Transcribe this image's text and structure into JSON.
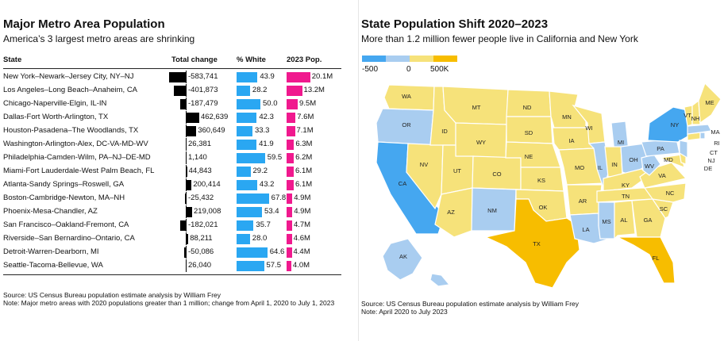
{
  "left_panel": {
    "title": "Major Metro Area Population",
    "subtitle": "America’s 3 largest metro areas are shrinking",
    "headers": {
      "state": "State",
      "change": "Total change",
      "white": "% White",
      "pop": "2023 Pop."
    },
    "source": "Source: US Census Bureau population estimate analysis by William Frey",
    "note": "Note: Major metro areas with 2020 populations greater than 1 million; change from April 1, 2020 to July 1, 2023"
  },
  "right_panel": {
    "title": "State Population Shift 2020–2023",
    "subtitle": "More than 1.2 million fewer people live in California and New York",
    "legend": {
      "labels": [
        "-500",
        "0",
        "500K"
      ],
      "colors": [
        "#45a7f0",
        "#a9cdf0",
        "#f6e27a",
        "#f7bd00"
      ]
    },
    "source": "Source: US Census Bureau population estimate analysis by William Frey",
    "note": "Note: April 2020 to July 2023"
  },
  "chart_data": [
    {
      "type": "table",
      "title": "Major Metro Area Population",
      "subtitle": "America’s 3 largest metro areas are shrinking",
      "columns": [
        "State",
        "Total change",
        "% White",
        "2023 Pop."
      ],
      "rows": [
        {
          "metro": "New York–Newark–Jersey City, NY–NJ",
          "change": -583741,
          "change_label": "-583,741",
          "white": 43.9,
          "pop_m": 20.1,
          "pop_label": "20.1M"
        },
        {
          "metro": "Los Angeles–Long Beach–Anaheim, CA",
          "change": -401873,
          "change_label": "-401,873",
          "white": 28.2,
          "pop_m": 13.2,
          "pop_label": "13.2M"
        },
        {
          "metro": "Chicago-Naperville-Elgin, IL-IN",
          "change": -187479,
          "change_label": "-187,479",
          "white": 50.0,
          "pop_m": 9.5,
          "pop_label": "9.5M"
        },
        {
          "metro": "Dallas-Fort Worth-Arlington, TX",
          "change": 462639,
          "change_label": "462,639",
          "white": 42.3,
          "pop_m": 7.6,
          "pop_label": "7.6M"
        },
        {
          "metro": "Houston-Pasadena–The Woodlands, TX",
          "change": 360649,
          "change_label": "360,649",
          "white": 33.3,
          "pop_m": 7.1,
          "pop_label": "7.1M"
        },
        {
          "metro": "Washington-Arlington-Alex, DC-VA-MD-WV",
          "change": 26381,
          "change_label": "26,381",
          "white": 41.9,
          "pop_m": 6.3,
          "pop_label": "6.3M"
        },
        {
          "metro": "Philadelphia-Camden-Wilm, PA–NJ–DE-MD",
          "change": 1140,
          "change_label": "1,140",
          "white": 59.5,
          "pop_m": 6.2,
          "pop_label": "6.2M"
        },
        {
          "metro": "Miami-Fort Lauderdale-West Palm Beach, FL",
          "change": 44843,
          "change_label": "44,843",
          "white": 29.2,
          "pop_m": 6.1,
          "pop_label": "6.1M"
        },
        {
          "metro": "Atlanta-Sandy Springs–Roswell, GA",
          "change": 200414,
          "change_label": "200,414",
          "white": 43.2,
          "pop_m": 6.1,
          "pop_label": "6.1M"
        },
        {
          "metro": "Boston-Cambridge-Newton, MA–NH",
          "change": -25432,
          "change_label": "-25,432",
          "white": 67.8,
          "pop_m": 4.9,
          "pop_label": "4.9M"
        },
        {
          "metro": "Phoenix-Mesa-Chandler, AZ",
          "change": 219008,
          "change_label": "219,008",
          "white": 53.4,
          "pop_m": 4.9,
          "pop_label": "4.9M"
        },
        {
          "metro": "San Francisco–Oakland-Fremont, CA",
          "change": -182021,
          "change_label": "-182,021",
          "white": 35.7,
          "pop_m": 4.7,
          "pop_label": "4.7M"
        },
        {
          "metro": "Riverside–San Bernardino–Ontario, CA",
          "change": 88211,
          "change_label": "88,211",
          "white": 28.0,
          "pop_m": 4.6,
          "pop_label": "4.6M"
        },
        {
          "metro": "Detroit-Warren-Dearborn, MI",
          "change": -50086,
          "change_label": "-50,086",
          "white": 64.6,
          "pop_m": 4.4,
          "pop_label": "4.4M"
        },
        {
          "metro": "Seattle-Tacoma-Bellevue, WA",
          "change": 26040,
          "change_label": "26,040",
          "white": 57.5,
          "pop_m": 4.0,
          "pop_label": "4.0M"
        }
      ]
    },
    {
      "type": "heatmap",
      "title": "State Population Shift 2020–2023",
      "subtitle": "More than 1.2 million fewer people live in California and New York",
      "legend": [
        "-500",
        "0",
        "500K"
      ],
      "categories": {
        "large_loss": [
          "CA",
          "NY"
        ],
        "small_loss": [
          "OR",
          "IL",
          "MI",
          "OH",
          "PA",
          "WV",
          "LA",
          "MS",
          "NM",
          "MA",
          "RI",
          "NJ",
          "HI",
          "AK"
        ],
        "small_gain": [
          "WA",
          "ID",
          "MT",
          "WY",
          "NV",
          "UT",
          "CO",
          "AZ",
          "ND",
          "SD",
          "NE",
          "KS",
          "OK",
          "MN",
          "IA",
          "MO",
          "AR",
          "WI",
          "IN",
          "KY",
          "TN",
          "AL",
          "GA",
          "SC",
          "NC",
          "VA",
          "MD",
          "DE",
          "CT",
          "VT",
          "NH",
          "ME"
        ],
        "large_gain": [
          "TX",
          "FL"
        ]
      }
    }
  ]
}
